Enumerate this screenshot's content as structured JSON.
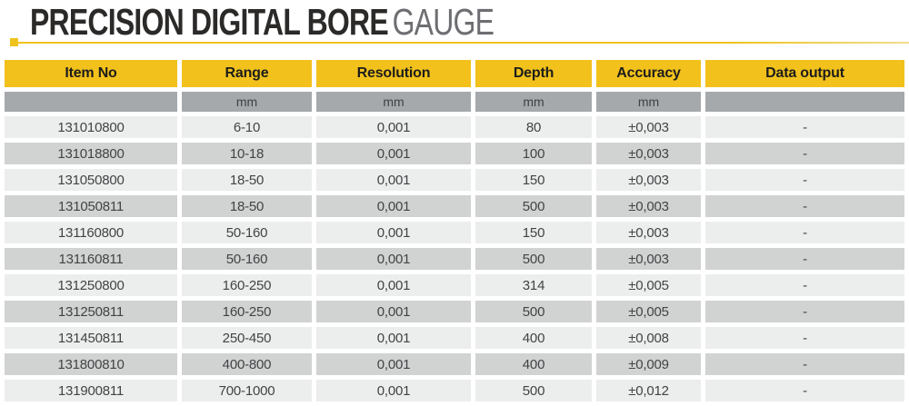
{
  "page": {
    "title_main": "PRECISION DIGITAL BORE",
    "title_sub": "GAUGE"
  },
  "colors": {
    "accent_yellow": "#F2C11C",
    "rule_yellow": "#EEC31B",
    "unit_row_gray": "#A5A9AC",
    "row_light": "#ECEDED",
    "row_dark": "#D1D2D2",
    "title_dark": "#2B2A29",
    "title_gray": "#6D6E71",
    "cell_text": "#414445"
  },
  "table": {
    "columns": [
      "Item No",
      "Range",
      "Resolution",
      "Depth",
      "Accuracy",
      "Data output"
    ],
    "units": [
      "",
      "mm",
      "mm",
      "mm",
      "mm",
      ""
    ],
    "rows": [
      [
        "131010800",
        "6-10",
        "0,001",
        "80",
        "±0,003",
        "-"
      ],
      [
        "131018800",
        "10-18",
        "0,001",
        "100",
        "±0,003",
        "-"
      ],
      [
        "131050800",
        "18-50",
        "0,001",
        "150",
        "±0,003",
        "-"
      ],
      [
        "131050811",
        "18-50",
        "0,001",
        "500",
        "±0,003",
        "-"
      ],
      [
        "131160800",
        "50-160",
        "0,001",
        "150",
        "±0,003",
        "-"
      ],
      [
        "131160811",
        "50-160",
        "0,001",
        "500",
        "±0,003",
        "-"
      ],
      [
        "131250800",
        "160-250",
        "0,001",
        "314",
        "±0,005",
        "-"
      ],
      [
        "131250811",
        "160-250",
        "0,001",
        "500",
        "±0,005",
        "-"
      ],
      [
        "131450811",
        "250-450",
        "0,001",
        "400",
        "±0,008",
        "-"
      ],
      [
        "131800810",
        "400-800",
        "0,001",
        "400",
        "±0,009",
        "-"
      ],
      [
        "131900811",
        "700-1000",
        "0,001",
        "500",
        "±0,012",
        "-"
      ]
    ]
  }
}
